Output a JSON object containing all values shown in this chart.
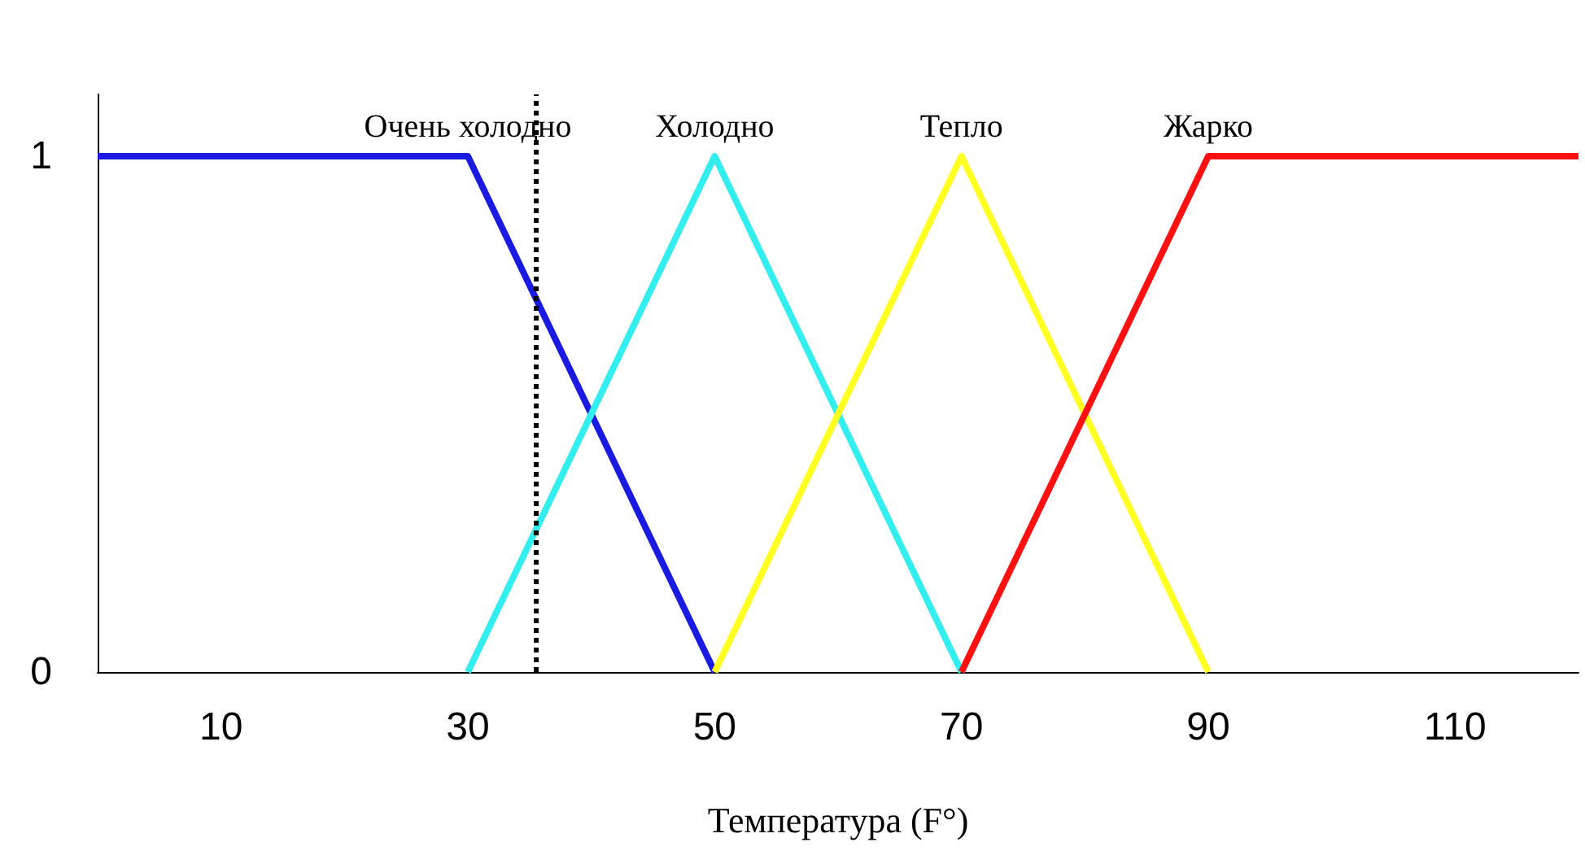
{
  "chart_data": {
    "type": "line",
    "xlabel": "Температура (F°)",
    "series": [
      {
        "name": "Очень холодно",
        "color": "#1a1ae0",
        "x": [
          0,
          30,
          50
        ],
        "values": [
          1,
          1,
          0
        ]
      },
      {
        "name": "Холодно",
        "color": "#33eeee",
        "x": [
          30,
          50,
          70
        ],
        "values": [
          0,
          1,
          0
        ]
      },
      {
        "name": "Тепло",
        "color": "#ffff22",
        "x": [
          50,
          70,
          90
        ],
        "values": [
          0,
          1,
          0
        ]
      },
      {
        "name": "Жарко",
        "color": "#ff1111",
        "x": [
          70,
          90,
          120
        ],
        "values": [
          0,
          1,
          1
        ]
      }
    ],
    "xlim": [
      0,
      120
    ],
    "xticks": [
      10,
      30,
      50,
      70,
      90,
      110
    ],
    "ylim": [
      0,
      1.12
    ],
    "yticks": [
      0,
      1
    ],
    "ref_lines": [
      {
        "axis": "x",
        "value": 35.5,
        "color": "#000000",
        "line_style": "dotted"
      }
    ],
    "grid": false,
    "legend": false,
    "marker": "none",
    "line_style": "solid"
  }
}
